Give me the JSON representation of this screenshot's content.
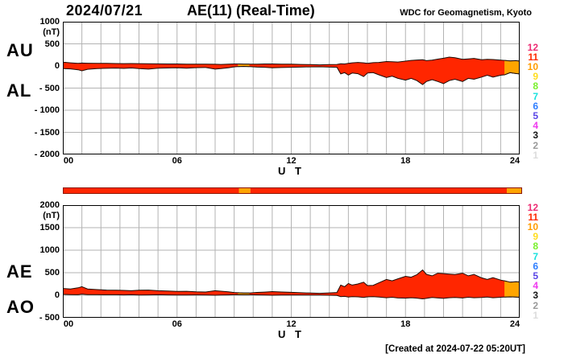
{
  "header": {
    "date": "2024/07/21",
    "title": "AE(11) (Real-Time)",
    "org": "WDC for Geomagnetism, Kyoto"
  },
  "footer": {
    "created": "[Created at 2024-07-22 05:20UT]"
  },
  "colors": {
    "data_red": "#ff2600",
    "data_orange": "#ffa500",
    "band_outline": "#1a0a00",
    "grid": "#b3b3b3",
    "axis": "#000000",
    "bar_border": "#8b1500"
  },
  "station_numbers": [
    {
      "label": "12",
      "color": "#ed2d74"
    },
    {
      "label": "11",
      "color": "#ff2a00"
    },
    {
      "label": "10",
      "color": "#ff9c00"
    },
    {
      "label": "9",
      "color": "#ffdd1e"
    },
    {
      "label": "8",
      "color": "#79f02d"
    },
    {
      "label": "7",
      "color": "#19e1de"
    },
    {
      "label": "6",
      "color": "#2e7eff"
    },
    {
      "label": "5",
      "color": "#5a46e6"
    },
    {
      "label": "4",
      "color": "#ef3cef"
    },
    {
      "label": "3",
      "color": "#161616"
    },
    {
      "label": "2",
      "color": "#9a9a9a"
    },
    {
      "label": "1",
      "color": "#dcdcdc"
    }
  ],
  "panels": {
    "top": {
      "left_labels": [
        {
          "text": "AU"
        },
        {
          "text": "AL"
        }
      ],
      "unit": "(nT)",
      "xlabel": "U T",
      "yticks": [
        {
          "value": 1000,
          "label": "1000"
        },
        {
          "value": 500,
          "label": "500"
        },
        {
          "value": 0,
          "label": "0"
        },
        {
          "value": -500,
          "label": "- 500"
        },
        {
          "value": -1000,
          "label": "- 1000"
        },
        {
          "value": -1500,
          "label": "- 1500"
        },
        {
          "value": -2000,
          "label": "- 2000"
        }
      ],
      "xticks": [
        {
          "value": 0,
          "label": "00"
        },
        {
          "value": 6,
          "label": "06"
        },
        {
          "value": 12,
          "label": "12"
        },
        {
          "value": 18,
          "label": "18"
        },
        {
          "value": 24,
          "label": "24"
        }
      ]
    },
    "bottom": {
      "left_labels": [
        {
          "text": "AE"
        },
        {
          "text": "AO"
        }
      ],
      "unit": "(nT)",
      "xlabel": "U T",
      "yticks": [
        {
          "value": 2000,
          "label": "2000"
        },
        {
          "value": 1500,
          "label": "1500"
        },
        {
          "value": 1000,
          "label": "1000"
        },
        {
          "value": 500,
          "label": "500"
        },
        {
          "value": 0,
          "label": "0"
        },
        {
          "value": -500,
          "label": "- 500"
        }
      ],
      "xticks": [
        {
          "value": 0,
          "label": "00"
        },
        {
          "value": 6,
          "label": "06"
        },
        {
          "value": 12,
          "label": "12"
        },
        {
          "value": 18,
          "label": "18"
        },
        {
          "value": 24,
          "label": "24"
        }
      ]
    }
  },
  "chart_data": [
    {
      "type": "area",
      "title": "AU / AL auroral electrojet envelopes, 2024/07/21 (nT vs UT hours)",
      "ylabel": "(nT)",
      "xlabel": "U T",
      "ylim": [
        -2000,
        1000
      ],
      "xlim": [
        0,
        24
      ],
      "grid": true,
      "x_hours": [
        0,
        0.4,
        0.8,
        1.0,
        1.3,
        1.8,
        2.3,
        2.8,
        3.2,
        3.6,
        4.0,
        4.5,
        5.0,
        5.5,
        6.0,
        6.5,
        7.0,
        7.5,
        8.0,
        8.3,
        8.7,
        9.0,
        9.2,
        9.5,
        9.8,
        10.2,
        10.6,
        11.0,
        11.5,
        12.0,
        12.5,
        13.0,
        13.5,
        14.0,
        14.4,
        14.6,
        14.8,
        15.0,
        15.2,
        15.5,
        15.8,
        16.0,
        16.3,
        16.6,
        17.0,
        17.3,
        17.6,
        18.0,
        18.3,
        18.6,
        18.9,
        19.1,
        19.4,
        19.7,
        20.0,
        20.3,
        20.6,
        21.0,
        21.3,
        21.6,
        22.0,
        22.3,
        22.6,
        23.0,
        23.2,
        23.5,
        23.8,
        24.0
      ],
      "series": [
        {
          "name": "AU",
          "values": [
            85,
            70,
            60,
            65,
            62,
            60,
            58,
            55,
            52,
            55,
            52,
            50,
            48,
            46,
            45,
            42,
            40,
            42,
            38,
            35,
            40,
            45,
            45,
            42,
            40,
            42,
            45,
            45,
            42,
            40,
            35,
            30,
            25,
            30,
            35,
            50,
            45,
            60,
            70,
            80,
            70,
            60,
            75,
            80,
            100,
            95,
            90,
            110,
            125,
            135,
            140,
            120,
            130,
            155,
            175,
            200,
            185,
            150,
            160,
            170,
            140,
            150,
            145,
            130,
            125,
            115,
            120,
            110
          ]
        },
        {
          "name": "AL",
          "values": [
            -60,
            -65,
            -85,
            -110,
            -75,
            -58,
            -52,
            -48,
            -55,
            -45,
            -60,
            -70,
            -50,
            -45,
            -40,
            -50,
            -38,
            -35,
            -70,
            -60,
            -40,
            -20,
            -15,
            -10,
            -12,
            -25,
            -30,
            -40,
            -35,
            -30,
            -25,
            -20,
            -18,
            -25,
            -30,
            -180,
            -150,
            -205,
            -160,
            -175,
            -240,
            -160,
            -150,
            -200,
            -260,
            -230,
            -280,
            -320,
            -280,
            -330,
            -420,
            -350,
            -310,
            -350,
            -400,
            -330,
            -300,
            -350,
            -280,
            -300,
            -250,
            -210,
            -250,
            -210,
            -200,
            -150,
            -170,
            -180
          ]
        }
      ],
      "realtime_orange_hours": [
        [
          9.2,
          9.8
        ],
        [
          23.2,
          24
        ]
      ]
    },
    {
      "type": "area",
      "title": "AE / AO auroral electrojet envelopes, 2024/07/21 (nT vs UT hours)",
      "ylabel": "(nT)",
      "xlabel": "U T",
      "ylim": [
        -500,
        2000
      ],
      "xlim": [
        0,
        24
      ],
      "grid": true,
      "x_hours": [
        0,
        0.4,
        0.8,
        1.0,
        1.3,
        1.8,
        2.3,
        2.8,
        3.2,
        3.6,
        4.0,
        4.5,
        5.0,
        5.5,
        6.0,
        6.5,
        7.0,
        7.5,
        8.0,
        8.3,
        8.7,
        9.0,
        9.2,
        9.5,
        9.8,
        10.2,
        10.6,
        11.0,
        11.5,
        12.0,
        12.5,
        13.0,
        13.5,
        14.0,
        14.4,
        14.6,
        14.8,
        15.0,
        15.2,
        15.5,
        15.8,
        16.0,
        16.3,
        16.6,
        17.0,
        17.3,
        17.6,
        18.0,
        18.3,
        18.6,
        18.9,
        19.1,
        19.4,
        19.7,
        20.0,
        20.3,
        20.6,
        21.0,
        21.3,
        21.6,
        22.0,
        22.3,
        22.6,
        23.0,
        23.2,
        23.5,
        23.8,
        24.0
      ],
      "series": [
        {
          "name": "AE",
          "values": [
            150,
            140,
            165,
            190,
            140,
            125,
            115,
            110,
            108,
            100,
            110,
            115,
            100,
            92,
            85,
            88,
            75,
            72,
            100,
            90,
            75,
            60,
            55,
            48,
            50,
            62,
            70,
            80,
            72,
            65,
            55,
            48,
            42,
            52,
            60,
            225,
            190,
            260,
            225,
            250,
            290,
            215,
            220,
            275,
            350,
            320,
            365,
            420,
            400,
            455,
            560,
            465,
            430,
            490,
            480,
            470,
            460,
            490,
            430,
            460,
            385,
            350,
            390,
            335,
            320,
            290,
            300,
            295
          ]
        },
        {
          "name": "AO",
          "values": [
            20,
            15,
            10,
            25,
            15,
            12,
            10,
            10,
            8,
            10,
            5,
            8,
            10,
            8,
            5,
            5,
            8,
            5,
            0,
            5,
            8,
            10,
            12,
            10,
            10,
            8,
            5,
            0,
            5,
            5,
            5,
            5,
            3,
            0,
            -5,
            -30,
            -25,
            -40,
            -30,
            -35,
            -50,
            -35,
            -30,
            -40,
            -55,
            -45,
            -60,
            -65,
            -55,
            -65,
            -80,
            -70,
            -50,
            -60,
            -70,
            -55,
            -50,
            -60,
            -45,
            -55,
            -50,
            -40,
            -55,
            -45,
            -40,
            -35,
            -40,
            -45
          ]
        }
      ],
      "realtime_orange_hours": [
        [
          9.2,
          9.8
        ],
        [
          23.2,
          24
        ]
      ]
    },
    {
      "type": "heatmap",
      "title": "data status strip (red = 11-station final, orange = provisional)",
      "xlim": [
        0,
        24
      ],
      "segments": [
        {
          "from": 0,
          "to": 9.2,
          "color": "#ff2600"
        },
        {
          "from": 9.2,
          "to": 9.8,
          "color": "#ffa500"
        },
        {
          "from": 9.8,
          "to": 23.2,
          "color": "#ff2600"
        },
        {
          "from": 23.2,
          "to": 24,
          "color": "#ffa500"
        }
      ]
    }
  ]
}
